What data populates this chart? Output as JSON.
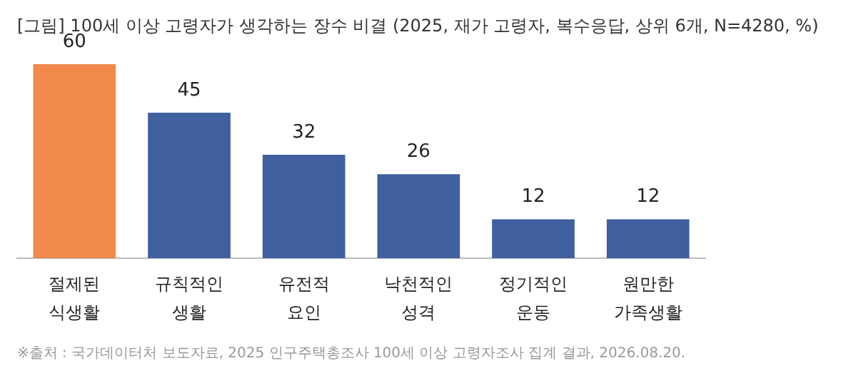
{
  "chart_data": {
    "type": "bar",
    "title": "[그림] 100세 이상 고령자가 생각하는 장수 비결 (2025, 재가 고령자, 복수응답, 상위 6개, N=4280, %)",
    "categories": [
      "절제된\n식생활",
      "규칙적인\n생활",
      "유전적\n요인",
      "낙천적인\n성격",
      "정기적인\n운동",
      "원만한\n가족생활"
    ],
    "values": [
      60,
      45,
      32,
      26,
      12,
      12
    ],
    "colors": [
      "#f0894a",
      "#3f5f9e",
      "#3f5f9e",
      "#3f5f9e",
      "#3f5f9e",
      "#3f5f9e"
    ],
    "data_labels": true,
    "grid": false,
    "legend": false,
    "annotations": [
      "※출처 : 국가데이터처 보도자료, 2025 인구주택총조사 100세 이상 고령자조사 집계 결과, 2026.08.20."
    ]
  }
}
